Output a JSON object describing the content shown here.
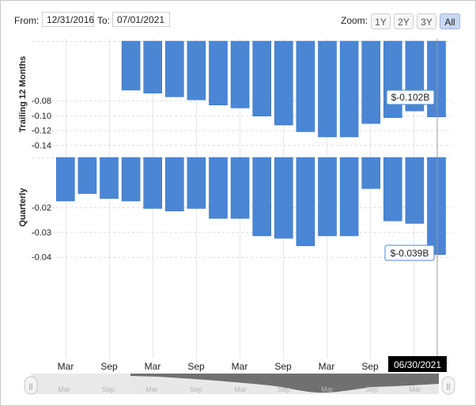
{
  "range": {
    "from_label": "From:",
    "from_value": "12/31/2016",
    "to_label": "To:",
    "to_value": "07/01/2021",
    "zoom_label": "Zoom:",
    "zoom_options": [
      "1Y",
      "2Y",
      "3Y",
      "All"
    ],
    "zoom_active": "All"
  },
  "chart_data": [
    {
      "type": "bar",
      "ylabel": "Trailing 12 Months",
      "ylim": [
        -0.145,
        0
      ],
      "yticks": [
        "-0.08",
        "-0.10",
        "-0.12",
        "-0.14"
      ],
      "ytick_values": [
        -0.08,
        -0.1,
        -0.12,
        -0.14
      ],
      "values": [
        null,
        null,
        null,
        -0.066,
        -0.07,
        -0.075,
        -0.079,
        -0.086,
        -0.09,
        -0.101,
        -0.113,
        -0.122,
        -0.129,
        -0.129,
        -0.111,
        -0.103,
        -0.094,
        -0.102
      ],
      "tooltip": "$-0.102B",
      "color": "#4a86d4"
    },
    {
      "type": "bar",
      "ylabel": "Quarterly",
      "ylim": [
        -0.042,
        0
      ],
      "yticks": [
        "-0.02",
        "-0.03",
        "-0.04"
      ],
      "ytick_values": [
        -0.02,
        -0.03,
        -0.04
      ],
      "values": [
        -0.0175,
        -0.0145,
        -0.0165,
        -0.0175,
        -0.0205,
        -0.0215,
        -0.0205,
        -0.0245,
        -0.0245,
        -0.0315,
        -0.0325,
        -0.0355,
        -0.0315,
        -0.0315,
        -0.0125,
        -0.0255,
        -0.0265,
        -0.039
      ],
      "tooltip": "$-0.039B",
      "color": "#4a86d4"
    }
  ],
  "x_axis": {
    "labels": [
      "Mar",
      "Sep",
      "Mar",
      "Sep",
      "Mar",
      "Sep",
      "Mar",
      "Sep"
    ],
    "current_date": "06/30/2021"
  },
  "navigator": {
    "labels": [
      "Mar",
      "Sep",
      "Mar",
      "Sep",
      "Mar",
      "Sep",
      "Mar",
      "Sep",
      "Mar"
    ],
    "left_handle": "||",
    "right_handle": "||"
  }
}
